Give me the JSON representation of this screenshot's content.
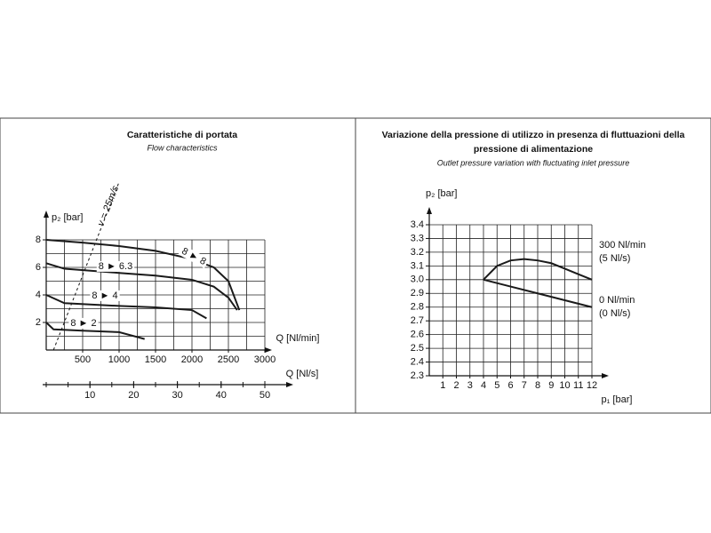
{
  "chart_data": [
    {
      "type": "line",
      "title": "Caratteristiche di portata",
      "subtitle": "Flow characteristics",
      "ylabel": "p₂ [bar]",
      "xlabel": "Q [Nl/min]",
      "x2label": "Q [Nl/s]",
      "xlim": [
        0,
        3000
      ],
      "xticks": [
        500,
        1000,
        1500,
        2000,
        2500,
        3000
      ],
      "xminor": 250,
      "ylim": [
        0,
        8
      ],
      "yticks": [
        2,
        4,
        6,
        8
      ],
      "yminor": 1,
      "x2lim": [
        0,
        50
      ],
      "x2ticks": [
        10,
        20,
        30,
        40,
        50
      ],
      "x2minor": 5,
      "grid": true,
      "color": "#1a1a1a",
      "series": [
        {
          "name": "8 ► 8",
          "x": [
            0,
            500,
            1000,
            1500,
            2000,
            2300,
            2500,
            2650
          ],
          "values": [
            8,
            7.8,
            7.55,
            7.2,
            6.6,
            6.0,
            5.0,
            2.9
          ]
        },
        {
          "name": "8 ► 6.3",
          "x": [
            0,
            250,
            1000,
            1500,
            2000,
            2300,
            2500,
            2620
          ],
          "values": [
            6.3,
            5.9,
            5.6,
            5.4,
            5.1,
            4.6,
            3.8,
            2.9
          ]
        },
        {
          "name": "8 ► 4",
          "x": [
            0,
            250,
            1000,
            1500,
            2000,
            2200
          ],
          "values": [
            4,
            3.4,
            3.2,
            3.1,
            2.9,
            2.3
          ]
        },
        {
          "name": "8 ► 2",
          "x": [
            0,
            100,
            500,
            1000,
            1350
          ],
          "values": [
            2,
            1.5,
            1.4,
            1.3,
            0.8
          ]
        }
      ],
      "reference_line": {
        "label": "v = 25m/s",
        "x": [
          100,
          1000
        ],
        "values": [
          0,
          12.2
        ]
      }
    },
    {
      "type": "line",
      "title": [
        "Variazione della pressione di utilizzo in presenza di fluttuazioni della",
        "pressione di alimentazione"
      ],
      "subtitle": "Outlet pressure variation with fluctuating inlet pressure",
      "ylabel": "p₂ [bar]",
      "xlabel": "p₁ [bar]",
      "xlim": [
        0,
        12
      ],
      "xticks": [
        1,
        2,
        3,
        4,
        5,
        6,
        7,
        8,
        9,
        10,
        11,
        12
      ],
      "xminor": 1,
      "ylim": [
        2.3,
        3.4
      ],
      "yticks": [
        2.3,
        2.4,
        2.5,
        2.6,
        2.7,
        2.8,
        2.9,
        {
          "value": 3,
          "label": "3.0"
        },
        3.1,
        3.2,
        3.3,
        3.4
      ],
      "yminor": 0.1,
      "grid": true,
      "color": "#1a1a1a",
      "series": [
        {
          "name": [
            "300 Nl/min",
            "(5 Nl/s)"
          ],
          "x": [
            4,
            5,
            6,
            7,
            8,
            9,
            10,
            11,
            12
          ],
          "values": [
            3.0,
            3.1,
            3.14,
            3.15,
            3.14,
            3.12,
            3.08,
            3.04,
            3.0
          ]
        },
        {
          "name": [
            "0 Nl/min",
            "(0 Nl/s)"
          ],
          "x": [
            4,
            6,
            8,
            10,
            12
          ],
          "values": [
            3.0,
            2.95,
            2.9,
            2.85,
            2.8
          ]
        }
      ]
    }
  ]
}
